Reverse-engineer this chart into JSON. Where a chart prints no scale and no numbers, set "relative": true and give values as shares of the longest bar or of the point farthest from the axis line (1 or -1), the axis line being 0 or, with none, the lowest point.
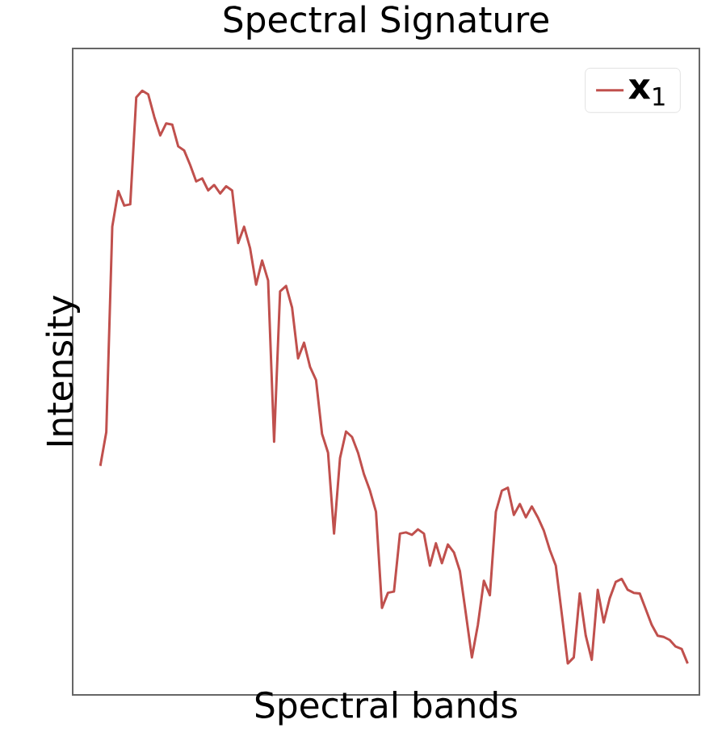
{
  "chart_data": {
    "type": "line",
    "title": "Spectral Signature",
    "xlabel": "Spectral bands",
    "ylabel": "Intensity",
    "relative": true,
    "legend": "top right",
    "categories": [
      null,
      null,
      null,
      null,
      null,
      null,
      null,
      null,
      null,
      null,
      null,
      null,
      null,
      null,
      null,
      null,
      null,
      null,
      null,
      null,
      null,
      null,
      null,
      null,
      null,
      null,
      null,
      null,
      null,
      null,
      null,
      null,
      null,
      null,
      null,
      null,
      null,
      null,
      null,
      null,
      null,
      null,
      null,
      null,
      null,
      null,
      null,
      null,
      null,
      null,
      null,
      null,
      null,
      null,
      null,
      null,
      null,
      null,
      null,
      null,
      null,
      null,
      null,
      null,
      null,
      null,
      null,
      null,
      null,
      null,
      null,
      null,
      null,
      null,
      null,
      null,
      null,
      null,
      null,
      null,
      null,
      null,
      null,
      null,
      null,
      null,
      null,
      null,
      null,
      null,
      null,
      null,
      null,
      null,
      null,
      null,
      null,
      null,
      null
    ],
    "series": [
      {
        "name": "**x**$_{1}$",
        "color": "#c0504d",
        "values": [
          0.379,
          0.435,
          0.775,
          0.834,
          0.81,
          0.812,
          0.989,
          1,
          0.994,
          0.957,
          0.926,
          0.946,
          0.944,
          0.908,
          0.901,
          0.877,
          0.85,
          0.855,
          0.835,
          0.844,
          0.83,
          0.842,
          0.835,
          0.748,
          0.775,
          0.739,
          0.679,
          0.719,
          0.686,
          0.419,
          0.668,
          0.677,
          0.641,
          0.557,
          0.583,
          0.543,
          0.521,
          0.432,
          0.401,
          0.267,
          0.392,
          0.436,
          0.427,
          0.401,
          0.365,
          0.338,
          0.303,
          0.144,
          0.169,
          0.171,
          0.267,
          0.269,
          0.265,
          0.274,
          0.267,
          0.214,
          0.251,
          0.218,
          0.249,
          0.236,
          0.205,
          0.134,
          0.062,
          0.116,
          0.189,
          0.165,
          0.303,
          0.338,
          0.343,
          0.298,
          0.316,
          0.294,
          0.312,
          0.294,
          0.272,
          0.24,
          0.214,
          0.134,
          0.052,
          0.062,
          0.168,
          0.098,
          0.058,
          0.174,
          0.12,
          0.16,
          0.187,
          0.192,
          0.174,
          0.169,
          0.168,
          0.142,
          0.116,
          0.098,
          0.096,
          0.091,
          0.08,
          0.076,
          0.052
        ]
      }
    ]
  }
}
